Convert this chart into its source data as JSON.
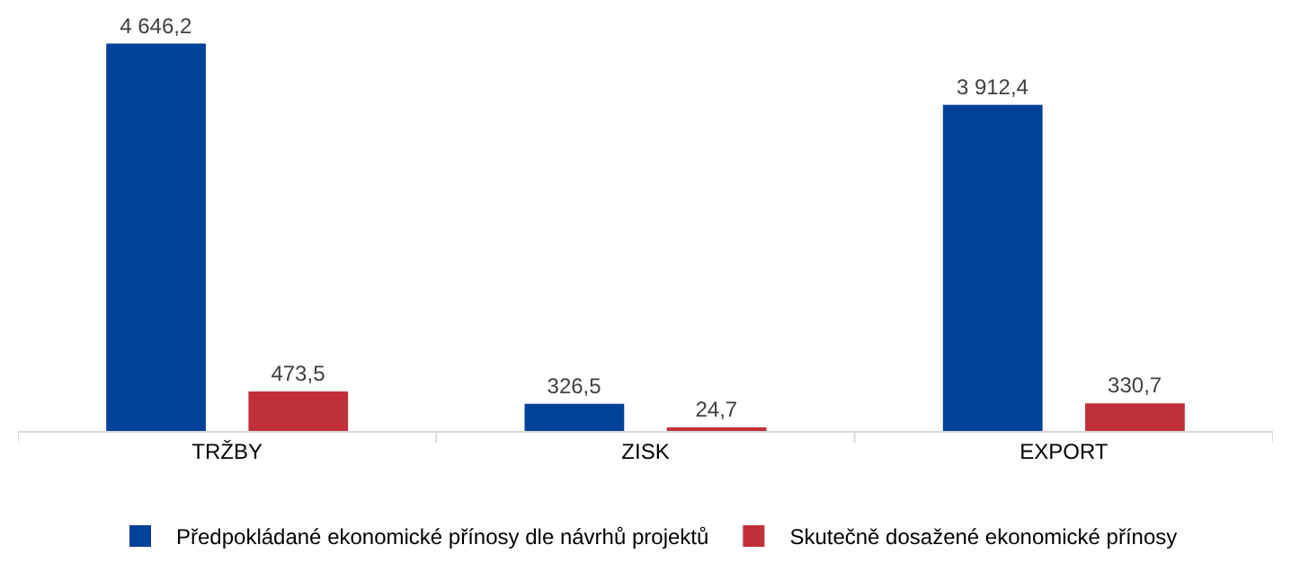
{
  "chart_data": {
    "type": "bar",
    "categories": [
      "TRŽBY",
      "ZISK",
      "EXPORT"
    ],
    "series": [
      {
        "name": "Předpokládané ekonomické přínosy dle návrhů projektů",
        "color": "#00419a",
        "values": [
          4646.2,
          326.5,
          3912.4
        ],
        "value_labels": [
          "4 646,2",
          "326,5",
          "3 912,4"
        ]
      },
      {
        "name": "Skutečně dosažené ekonomické přínosy",
        "color": "#c0303a",
        "values": [
          473.5,
          24.7,
          330.7
        ],
        "value_labels": [
          "473,5",
          "24,7",
          "330,7"
        ]
      }
    ],
    "legend": "bottom"
  }
}
